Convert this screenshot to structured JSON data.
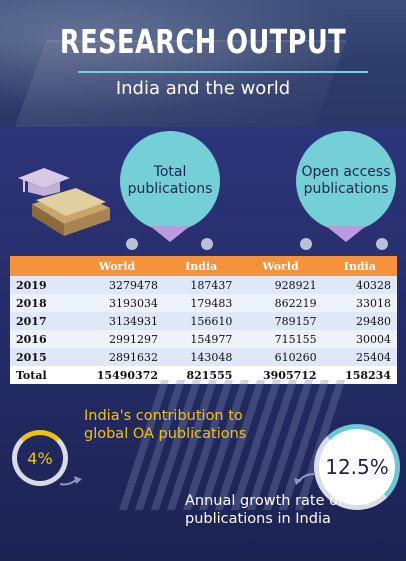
{
  "header": {
    "title": "RESEARCH OUTPUT",
    "subtitle": "India and the world"
  },
  "bubbles": {
    "total": "Total publications",
    "open_access": "Open access publications"
  },
  "table": {
    "headers": [
      "",
      "World",
      "India",
      "World",
      "India"
    ],
    "rows": [
      {
        "year": "2019",
        "values": [
          "3279478",
          "187437",
          "928921",
          "40328"
        ]
      },
      {
        "year": "2018",
        "values": [
          "3193034",
          "179483",
          "862219",
          "33018"
        ]
      },
      {
        "year": "2017",
        "values": [
          "3134931",
          "156610",
          "789157",
          "29480"
        ]
      },
      {
        "year": "2016",
        "values": [
          "2991297",
          "154977",
          "715155",
          "30004"
        ]
      },
      {
        "year": "2015",
        "values": [
          "2891632",
          "143048",
          "610260",
          "25404"
        ]
      }
    ],
    "total": {
      "label": "Total",
      "values": [
        "15490372",
        "821555",
        "3905712",
        "158234"
      ]
    }
  },
  "stats": {
    "contribution_value": "4%",
    "contribution_label": "India's contribution to global OA publications",
    "growth_value": "12.5%",
    "growth_label": "Annual growth rate of OA publications in India"
  },
  "colors": {
    "header_accent": "#6dd3dc",
    "table_header": "#f6923b",
    "bubble": "#74cfd6",
    "highlight_text": "#f2c20b"
  }
}
